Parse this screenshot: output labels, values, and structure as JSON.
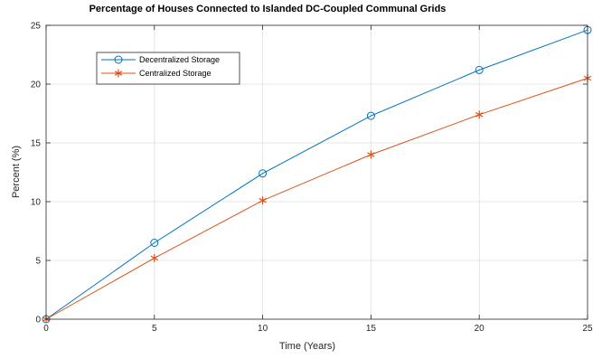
{
  "chart_data": {
    "type": "line",
    "title": "Percentage of Houses Connected to Islanded DC-Coupled Communal Grids",
    "xlabel": "Time (Years)",
    "ylabel": "Percent (%)",
    "xlim": [
      0,
      25
    ],
    "ylim": [
      0,
      25
    ],
    "xticks": [
      0,
      5,
      10,
      15,
      20,
      25
    ],
    "yticks": [
      0,
      5,
      10,
      15,
      20,
      25
    ],
    "grid": true,
    "legend_position": "top-left",
    "x": [
      0,
      5,
      10,
      15,
      20,
      25
    ],
    "series": [
      {
        "name": "Decentralized Storage",
        "values": [
          0,
          6.5,
          12.4,
          17.3,
          21.2,
          24.6
        ],
        "color": "#0072BD",
        "marker": "circle"
      },
      {
        "name": "Centralized Storage",
        "values": [
          0,
          5.2,
          10.1,
          14.0,
          17.4,
          20.5
        ],
        "color": "#D95319",
        "marker": "asterisk"
      }
    ]
  }
}
